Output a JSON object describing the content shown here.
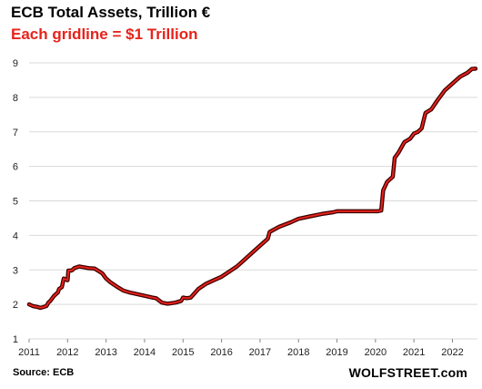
{
  "chart_data": {
    "type": "line",
    "title": "ECB Total Assets, Trillion €",
    "subtitle": "Each gridline = $1 Trillion",
    "source": "Source: ECB",
    "brand": "WOLFSTREET.com",
    "ylim": [
      1,
      9
    ],
    "yticks": [
      1,
      2,
      3,
      4,
      5,
      6,
      7,
      8,
      9
    ],
    "xlim": [
      2011.0,
      2022.65
    ],
    "xticks": [
      2011,
      2012,
      2013,
      2014,
      2015,
      2016,
      2017,
      2018,
      2019,
      2020,
      2021,
      2022
    ],
    "grid": true,
    "colors": {
      "line": "#e8221b",
      "shadow": "#3a0000",
      "grid": "#d9d9d9",
      "subtitle": "#e8221b"
    },
    "series": [
      {
        "x": [
          2011.0,
          2011.1,
          2011.2,
          2011.3,
          2011.45,
          2011.5,
          2011.55,
          2011.65,
          2011.75,
          2011.78,
          2011.85,
          2011.9,
          2011.95,
          2012.0,
          2012.02,
          2012.1,
          2012.15,
          2012.17,
          2012.3,
          2012.4,
          2012.5,
          2012.55,
          2012.7,
          2012.9,
          2013.0,
          2013.05,
          2013.1,
          2013.3,
          2013.45,
          2013.6,
          2013.8,
          2014.0,
          2014.2,
          2014.3,
          2014.45,
          2014.6,
          2014.8,
          2014.95,
          2015.0,
          2015.1,
          2015.2,
          2015.4,
          2015.6,
          2015.8,
          2016.0,
          2016.2,
          2016.4,
          2016.6,
          2016.8,
          2017.0,
          2017.2,
          2017.25,
          2017.5,
          2017.8,
          2018.0,
          2018.3,
          2018.6,
          2018.9,
          2019.0,
          2019.3,
          2019.6,
          2019.9,
          2020.05,
          2020.15,
          2020.2,
          2020.3,
          2020.45,
          2020.5,
          2020.6,
          2020.75,
          2020.9,
          2021.0,
          2021.1,
          2021.2,
          2021.3,
          2021.45,
          2021.6,
          2021.8,
          2022.0,
          2022.2,
          2022.4,
          2022.5,
          2022.6
        ],
        "values": [
          2.0,
          1.95,
          1.93,
          1.9,
          1.95,
          2.05,
          2.1,
          2.25,
          2.35,
          2.45,
          2.5,
          2.75,
          2.72,
          2.7,
          2.98,
          2.98,
          3.02,
          3.05,
          3.1,
          3.08,
          3.06,
          3.05,
          3.04,
          2.9,
          2.75,
          2.7,
          2.65,
          2.5,
          2.4,
          2.35,
          2.3,
          2.25,
          2.2,
          2.18,
          2.05,
          2.02,
          2.05,
          2.1,
          2.2,
          2.18,
          2.2,
          2.45,
          2.6,
          2.7,
          2.8,
          2.95,
          3.1,
          3.3,
          3.5,
          3.7,
          3.9,
          4.1,
          4.25,
          4.38,
          4.48,
          4.55,
          4.62,
          4.67,
          4.7,
          4.7,
          4.7,
          4.7,
          4.7,
          4.72,
          5.3,
          5.55,
          5.7,
          6.25,
          6.4,
          6.7,
          6.8,
          6.95,
          7.0,
          7.1,
          7.55,
          7.65,
          7.9,
          8.2,
          8.4,
          8.6,
          8.72,
          8.82,
          8.83
        ]
      }
    ]
  }
}
